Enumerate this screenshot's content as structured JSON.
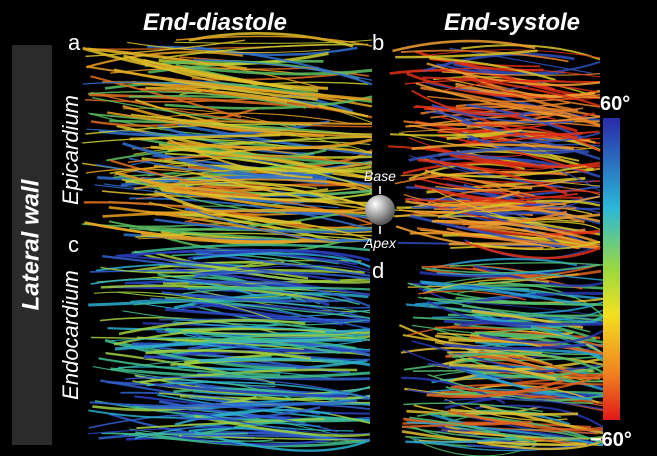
{
  "column_titles": [
    "End-diastole",
    "End-systole"
  ],
  "panel_labels": [
    "a",
    "b",
    "c",
    "d"
  ],
  "row_group": "Lateral wall",
  "row_titles": [
    "Epicardium",
    "Endocardium"
  ],
  "orientation": {
    "top": "Base",
    "bottom": "Apex"
  },
  "colorbar": {
    "max_label": "60°",
    "min_label": "−60°"
  }
}
